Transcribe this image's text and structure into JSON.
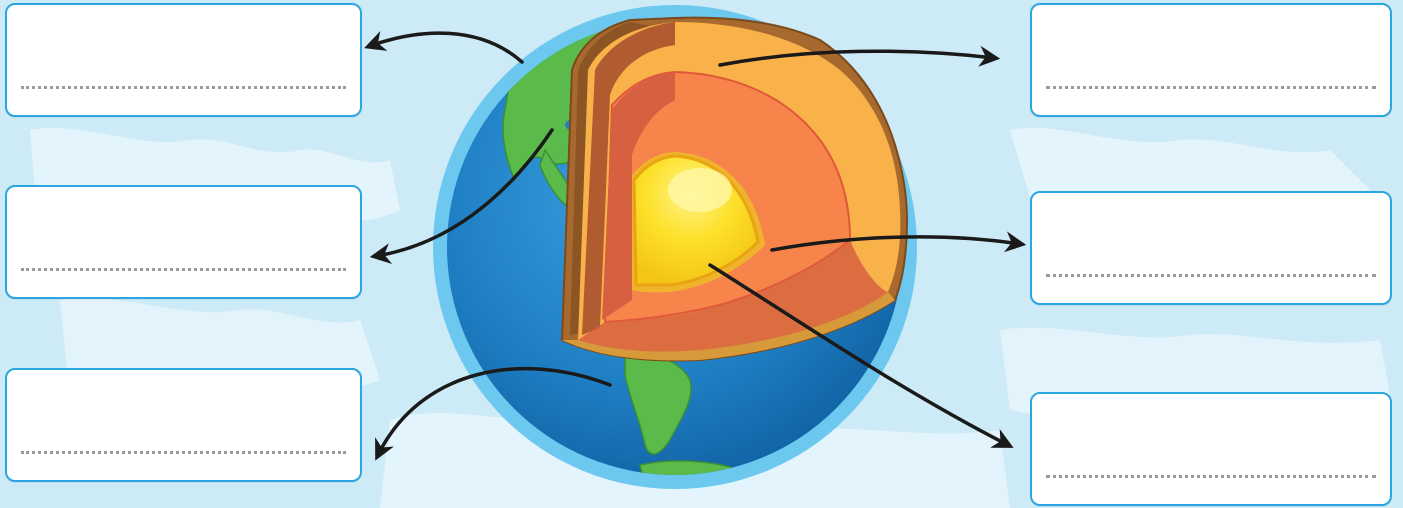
{
  "diagram": {
    "answer_boxes": [
      {
        "id": "left-top",
        "answer": ""
      },
      {
        "id": "left-middle",
        "answer": ""
      },
      {
        "id": "left-bottom",
        "answer": ""
      },
      {
        "id": "right-top",
        "answer": ""
      },
      {
        "id": "right-middle",
        "answer": ""
      },
      {
        "id": "right-bottom",
        "answer": ""
      }
    ]
  },
  "colors": {
    "background": "#cdeaf7",
    "ocean": "#1f7fc4",
    "atmosphere": "#6cc8ef",
    "land": "#5bbb4a",
    "crust": "#a8692e",
    "mantle_outer": "#f9b24a",
    "mantle_inner": "#f7844a",
    "outer_core_shadow": "#d76040",
    "inner_core": "#fde12b",
    "box_border": "#2aa7e0",
    "arrow": "#1a1a1a"
  },
  "icons": [
    "earth-cutaway-icon",
    "arrow-icon"
  ]
}
